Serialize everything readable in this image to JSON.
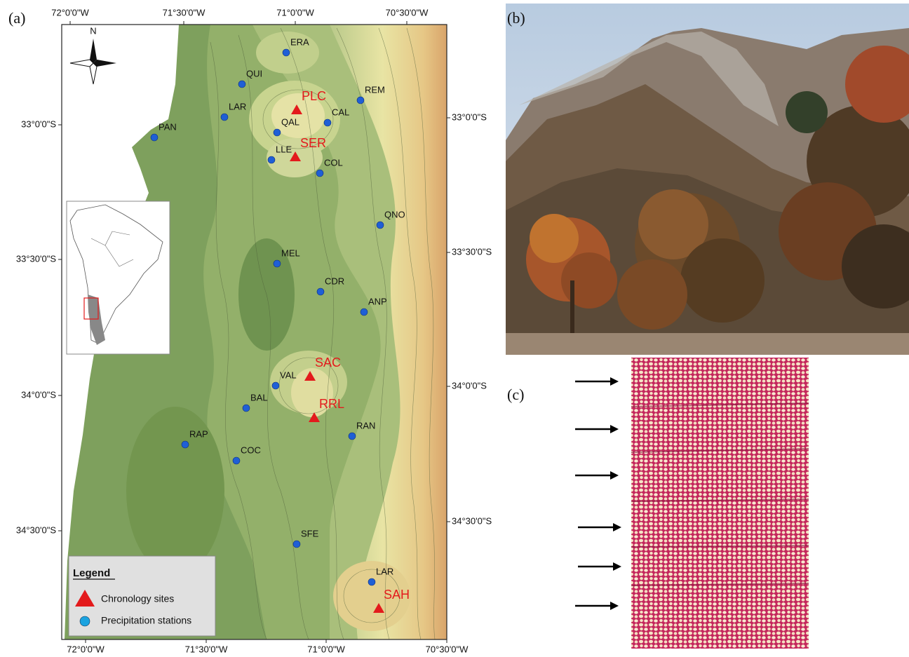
{
  "panels": {
    "a": "(a)",
    "b": "(b)",
    "c": "(c)"
  },
  "map": {
    "north": "N",
    "x_ticks_top": [
      "72°0'0\"W",
      "71°30'0\"W",
      "71°0'0\"W",
      "70°30'0\"W"
    ],
    "x_ticks_bottom": [
      "72°0'0\"W",
      "71°30'0\"W",
      "71°0'0\"W",
      "70°30'0\"W"
    ],
    "y_ticks_left": [
      "33°0'0\"S",
      "33°30'0\"S",
      "34°0'0\"S",
      "34°30'0\"S"
    ],
    "y_ticks_right": [
      "33°0'0\"S",
      "33°30'0\"S",
      "34°0'0\"S",
      "34°30'0\"S"
    ],
    "stations": [
      "ERA",
      "QUI",
      "REM",
      "LAR",
      "CAL",
      "PAN",
      "QAL",
      "LLE",
      "COL",
      "QNO",
      "MEL",
      "CDR",
      "ANP",
      "VAL",
      "BAL",
      "RAN",
      "RAP",
      "COC",
      "SFE",
      "LAR"
    ],
    "sites": [
      "PLC",
      "SER",
      "SAC",
      "RRL",
      "SAH"
    ],
    "legend": {
      "title": "Legend",
      "sites": "Chronology sites",
      "stations": "Precipitation stations"
    }
  }
}
